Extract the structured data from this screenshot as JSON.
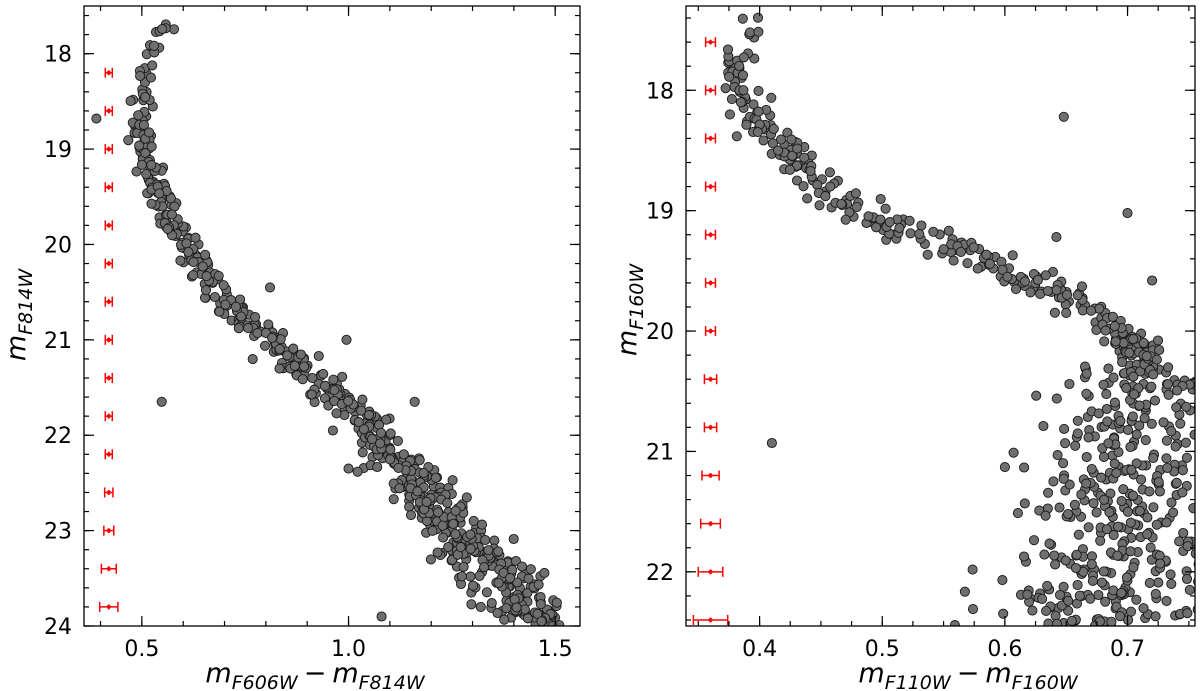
{
  "chart_data": [
    {
      "type": "scatter",
      "xlabel": {
        "main": "m",
        "sub1": "F606W",
        "minus": "−",
        "main2": "m",
        "sub2": "F814W"
      },
      "ylabel": {
        "main": "m",
        "sub": "F814W"
      },
      "xlim": [
        0.36,
        1.56
      ],
      "ylim": [
        24.0,
        17.5
      ],
      "y_inverted": true,
      "xticks": [
        0.5,
        1.0,
        1.5
      ],
      "xtick_labels": [
        "0.5",
        "1.0",
        "1.5"
      ],
      "yticks": [
        18,
        19,
        20,
        21,
        22,
        23,
        24
      ],
      "ytick_labels": [
        "18",
        "19",
        "20",
        "21",
        "22",
        "23",
        "24"
      ],
      "x_minor_step": 0.1,
      "y_minor_step": 0.2,
      "point_color": "#6f6f6f",
      "point_edge": "#1a1a1a",
      "errorbar_color": "#ff0000",
      "sequence": [
        [
          0.575,
          17.55
        ],
        [
          0.56,
          17.7
        ],
        [
          0.54,
          17.82
        ],
        [
          0.515,
          18.05
        ],
        [
          0.505,
          18.3
        ],
        [
          0.5,
          18.6
        ],
        [
          0.502,
          18.9
        ],
        [
          0.51,
          19.1
        ],
        [
          0.525,
          19.3
        ],
        [
          0.545,
          19.5
        ],
        [
          0.565,
          19.7
        ],
        [
          0.59,
          19.85
        ],
        [
          0.61,
          20.0
        ],
        [
          0.63,
          20.15
        ],
        [
          0.655,
          20.3
        ],
        [
          0.68,
          20.45
        ],
        [
          0.715,
          20.62
        ],
        [
          0.75,
          20.78
        ],
        [
          0.79,
          20.93
        ],
        [
          0.83,
          21.07
        ],
        [
          0.87,
          21.2
        ],
        [
          0.91,
          21.35
        ],
        [
          0.95,
          21.5
        ],
        [
          0.99,
          21.65
        ],
        [
          1.03,
          21.82
        ],
        [
          1.07,
          22.0
        ],
        [
          1.1,
          22.2
        ],
        [
          1.14,
          22.4
        ],
        [
          1.18,
          22.6
        ],
        [
          1.22,
          22.8
        ],
        [
          1.27,
          23.0
        ],
        [
          1.31,
          23.2
        ],
        [
          1.35,
          23.4
        ],
        [
          1.39,
          23.6
        ],
        [
          1.43,
          23.8
        ],
        [
          1.47,
          24.0
        ]
      ],
      "outliers": [
        [
          0.548,
          21.65
        ],
        [
          0.39,
          18.68
        ],
        [
          0.81,
          20.45
        ],
        [
          0.995,
          21.0
        ],
        [
          1.16,
          21.65
        ],
        [
          1.08,
          23.9
        ],
        [
          1.0,
          22.35
        ],
        [
          1.32,
          23.8
        ]
      ],
      "errorbars": [
        {
          "x": 0.42,
          "y": 18.2,
          "xerr": 0.004
        },
        {
          "x": 0.42,
          "y": 18.6,
          "xerr": 0.004
        },
        {
          "x": 0.42,
          "y": 19.0,
          "xerr": 0.004
        },
        {
          "x": 0.42,
          "y": 19.4,
          "xerr": 0.004
        },
        {
          "x": 0.42,
          "y": 19.8,
          "xerr": 0.005
        },
        {
          "x": 0.42,
          "y": 20.2,
          "xerr": 0.005
        },
        {
          "x": 0.42,
          "y": 20.6,
          "xerr": 0.005
        },
        {
          "x": 0.42,
          "y": 21.0,
          "xerr": 0.005
        },
        {
          "x": 0.42,
          "y": 21.4,
          "xerr": 0.006
        },
        {
          "x": 0.42,
          "y": 21.8,
          "xerr": 0.007
        },
        {
          "x": 0.42,
          "y": 22.2,
          "xerr": 0.008
        },
        {
          "x": 0.42,
          "y": 22.6,
          "xerr": 0.01
        },
        {
          "x": 0.42,
          "y": 23.0,
          "xerr": 0.012
        },
        {
          "x": 0.42,
          "y": 23.4,
          "xerr": 0.018
        },
        {
          "x": 0.42,
          "y": 23.8,
          "xerr": 0.022
        }
      ]
    },
    {
      "type": "scatter",
      "xlabel": {
        "main": "m",
        "sub1": "F110W",
        "minus": "−",
        "main2": "m",
        "sub2": "F160W"
      },
      "ylabel": {
        "main": "m",
        "sub": "F160W"
      },
      "xlim": [
        0.34,
        0.755
      ],
      "ylim": [
        22.45,
        17.3
      ],
      "y_inverted": true,
      "xticks": [
        0.4,
        0.5,
        0.6,
        0.7
      ],
      "xtick_labels": [
        "0.4",
        "0.5",
        "0.6",
        "0.7"
      ],
      "yticks": [
        18,
        19,
        20,
        21,
        22
      ],
      "ytick_labels": [
        "18",
        "19",
        "20",
        "21",
        "22"
      ],
      "x_minor_step": 0.025,
      "y_minor_step": 0.2,
      "point_color": "#6f6f6f",
      "point_edge": "#1a1a1a",
      "errorbar_color": "#ff0000",
      "sequence": [
        [
          0.405,
          17.35
        ],
        [
          0.395,
          17.45
        ],
        [
          0.385,
          17.6
        ],
        [
          0.38,
          17.8
        ],
        [
          0.385,
          18.0
        ],
        [
          0.395,
          18.2
        ],
        [
          0.41,
          18.4
        ],
        [
          0.43,
          18.6
        ],
        [
          0.45,
          18.78
        ],
        [
          0.475,
          18.95
        ],
        [
          0.5,
          19.08
        ],
        [
          0.53,
          19.2
        ],
        [
          0.56,
          19.32
        ],
        [
          0.59,
          19.45
        ],
        [
          0.62,
          19.57
        ],
        [
          0.65,
          19.7
        ],
        [
          0.675,
          19.85
        ],
        [
          0.695,
          20.0
        ],
        [
          0.71,
          20.2
        ],
        [
          0.715,
          20.4
        ],
        [
          0.712,
          20.6
        ],
        [
          0.705,
          20.8
        ],
        [
          0.7,
          21.0
        ],
        [
          0.695,
          21.3
        ],
        [
          0.69,
          21.6
        ],
        [
          0.688,
          21.9
        ],
        [
          0.688,
          22.2
        ],
        [
          0.69,
          22.45
        ]
      ],
      "outliers": [
        [
          0.648,
          18.22
        ],
        [
          0.642,
          19.22
        ],
        [
          0.6,
          21.13
        ],
        [
          0.41,
          20.93
        ],
        [
          0.72,
          19.58
        ],
        [
          0.7,
          19.02
        ]
      ],
      "errorbars": [
        {
          "x": 0.36,
          "y": 17.2,
          "xerr": 0.004
        },
        {
          "x": 0.36,
          "y": 17.6,
          "xerr": 0.004
        },
        {
          "x": 0.36,
          "y": 18.0,
          "xerr": 0.004
        },
        {
          "x": 0.36,
          "y": 18.4,
          "xerr": 0.004
        },
        {
          "x": 0.36,
          "y": 18.8,
          "xerr": 0.004
        },
        {
          "x": 0.36,
          "y": 19.2,
          "xerr": 0.004
        },
        {
          "x": 0.36,
          "y": 19.6,
          "xerr": 0.004
        },
        {
          "x": 0.36,
          "y": 20.0,
          "xerr": 0.004
        },
        {
          "x": 0.36,
          "y": 20.4,
          "xerr": 0.005
        },
        {
          "x": 0.36,
          "y": 20.8,
          "xerr": 0.005
        },
        {
          "x": 0.36,
          "y": 21.2,
          "xerr": 0.007
        },
        {
          "x": 0.36,
          "y": 21.6,
          "xerr": 0.008
        },
        {
          "x": 0.36,
          "y": 22.0,
          "xerr": 0.01
        },
        {
          "x": 0.36,
          "y": 22.4,
          "xerr": 0.014
        }
      ]
    }
  ]
}
